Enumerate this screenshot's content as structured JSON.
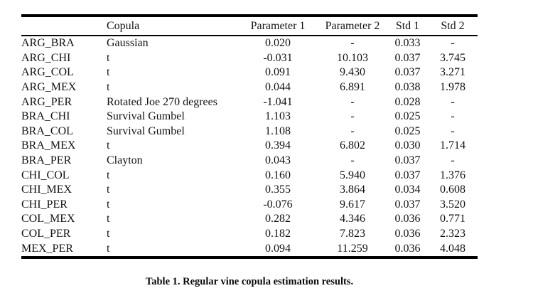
{
  "colors": {
    "background": "#ffffff",
    "text": "#121212",
    "rule": "#000000"
  },
  "table": {
    "caption": "Table 1. Regular vine copula estimation results.",
    "headers": [
      "",
      "Copula",
      "Parameter 1",
      "Parameter 2",
      "Std 1",
      "Std 2"
    ],
    "rows": [
      [
        "ARG_BRA",
        "Gaussian",
        "0.020",
        "-",
        "0.033",
        "-"
      ],
      [
        "ARG_CHI",
        "t",
        "-0.031",
        "10.103",
        "0.037",
        "3.745"
      ],
      [
        "ARG_COL",
        "t",
        "0.091",
        "9.430",
        "0.037",
        "3.271"
      ],
      [
        "ARG_MEX",
        "t",
        "0.044",
        "6.891",
        "0.038",
        "1.978"
      ],
      [
        "ARG_PER",
        "Rotated Joe 270 degrees",
        "-1.041",
        "-",
        "0.028",
        "-"
      ],
      [
        "BRA_CHI",
        "Survival Gumbel",
        "1.103",
        "-",
        "0.025",
        "-"
      ],
      [
        "BRA_COL",
        "Survival Gumbel",
        "1.108",
        "-",
        "0.025",
        "-"
      ],
      [
        "BRA_MEX",
        "t",
        "0.394",
        "6.802",
        "0.030",
        "1.714"
      ],
      [
        "BRA_PER",
        "Clayton",
        "0.043",
        "-",
        "0.037",
        "-"
      ],
      [
        "CHI_COL",
        "t",
        "0.160",
        "5.940",
        "0.037",
        "1.376"
      ],
      [
        "CHI_MEX",
        "t",
        "0.355",
        "3.864",
        "0.034",
        "0.608"
      ],
      [
        "CHI_PER",
        "t",
        "-0.076",
        "9.617",
        "0.037",
        "3.520"
      ],
      [
        "COL_MEX",
        "t",
        "0.282",
        "4.346",
        "0.036",
        "0.771"
      ],
      [
        "COL_PER",
        "t",
        "0.182",
        "7.823",
        "0.036",
        "2.323"
      ],
      [
        "MEX_PER",
        "t",
        "0.094",
        "11.259",
        "0.036",
        "4.048"
      ]
    ]
  }
}
